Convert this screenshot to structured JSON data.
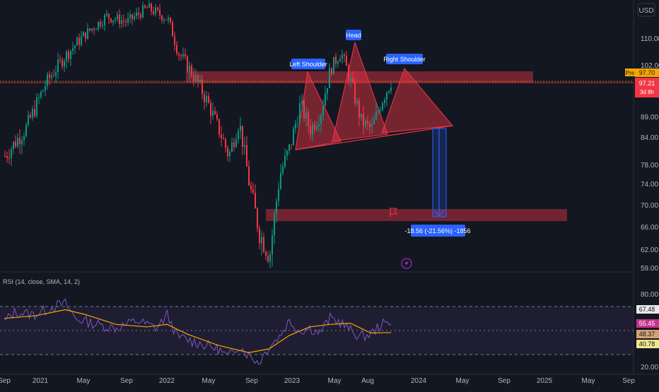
{
  "currency": "USD",
  "price_scale": {
    "ticks": [
      "110.00",
      "102.00",
      "97.70",
      "97.21",
      "89.00",
      "84.00",
      "78.00",
      "74.00",
      "70.00",
      "66.00",
      "62.00",
      "59.00"
    ],
    "pre_label": "Pre",
    "pre_value": "97.70",
    "last_value": "97.21",
    "countdown": "3d 8h",
    "pre_color": "#f7a600",
    "last_color": "#f23645"
  },
  "time_axis": [
    "Sep",
    "2021",
    "May",
    "Sep",
    "2022",
    "May",
    "Sep",
    "2023",
    "May",
    "Aug",
    "2024",
    "May",
    "Sep",
    "2025",
    "May",
    "Sep"
  ],
  "pattern": {
    "left_shoulder": "Left Shoulder",
    "head": "Head",
    "right_shoulder": "Right Shoulder",
    "projection": "-18.56 (-21.56%) -1856"
  },
  "rsi": {
    "title": "RSI (14, close, SMA, 14, 2)",
    "levels": [
      "80.00",
      "20.00"
    ],
    "badges": [
      "67.48",
      "55.45",
      "48.37",
      "40.78"
    ],
    "badge_colors": [
      "#e8e8e8",
      "#c9318f",
      "#d4a373",
      "#f0e68c"
    ]
  },
  "chart_data": [
    {
      "type": "candlestick",
      "title": "",
      "currency": "USD",
      "x_ticks": [
        "Sep",
        "2021",
        "May",
        "Sep",
        "2022",
        "May",
        "Sep",
        "2023",
        "May",
        "Aug",
        "2024",
        "May",
        "Sep",
        "2025",
        "May",
        "Sep"
      ],
      "y_ticks": [
        110,
        102,
        89,
        84,
        78,
        74,
        70,
        66,
        62,
        59
      ],
      "ylim": [
        58,
        125
      ],
      "close_path": [
        [
          "2020-09",
          80
        ],
        [
          "2020-11",
          86
        ],
        [
          "2021-01",
          97
        ],
        [
          "2021-03",
          105
        ],
        [
          "2021-05",
          112
        ],
        [
          "2021-07",
          118
        ],
        [
          "2021-09",
          116
        ],
        [
          "2021-11",
          121
        ],
        [
          "2022-01",
          117
        ],
        [
          "2022-02",
          106
        ],
        [
          "2022-04",
          97
        ],
        [
          "2022-05",
          92
        ],
        [
          "2022-06",
          86
        ],
        [
          "2022-07",
          80
        ],
        [
          "2022-08",
          88
        ],
        [
          "2022-09",
          74
        ],
        [
          "2022-10",
          65
        ],
        [
          "2022-11",
          61
        ],
        [
          "2022-12",
          76
        ],
        [
          "2023-01",
          82
        ],
        [
          "2023-02",
          92
        ],
        [
          "2023-03",
          86
        ],
        [
          "2023-04",
          90
        ],
        [
          "2023-05",
          101
        ],
        [
          "2023-06",
          106
        ],
        [
          "2023-07",
          97
        ],
        [
          "2023-08",
          88
        ],
        [
          "2023-09",
          86
        ],
        [
          "2023-10",
          93
        ],
        [
          "2023-11",
          98
        ]
      ],
      "last_price": 97.21
    },
    {
      "type": "line",
      "title": "RSI (14, close, SMA, 14, 2)",
      "ylim": [
        20,
        85
      ],
      "levels": [
        80,
        20
      ],
      "series": [
        {
          "points": [
            [
              "2020-09",
              57
            ],
            [
              "2020-10",
              65
            ],
            [
              "2020-12",
              63
            ],
            [
              "2021-02",
              70
            ],
            [
              "2021-03",
              72
            ],
            [
              "2021-04",
              60
            ],
            [
              "2021-06",
              55
            ],
            [
              "2021-08",
              52
            ],
            [
              "2021-10",
              58
            ],
            [
              "2021-12",
              52
            ],
            [
              "2022-01",
              63
            ],
            [
              "2022-02",
              45
            ],
            [
              "2022-04",
              40
            ],
            [
              "2022-06",
              35
            ],
            [
              "2022-07",
              28
            ],
            [
              "2022-08",
              38
            ],
            [
              "2022-09",
              30
            ],
            [
              "2022-10",
              24
            ],
            [
              "2022-11",
              37
            ],
            [
              "2022-12",
              45
            ],
            [
              "2023-01",
              58
            ],
            [
              "2023-02",
              50
            ],
            [
              "2023-03",
              52
            ],
            [
              "2023-04",
              48
            ],
            [
              "2023-05",
              60
            ],
            [
              "2023-06",
              57
            ],
            [
              "2023-07",
              50
            ],
            [
              "2023-08",
              45
            ],
            [
              "2023-09",
              47
            ],
            [
              "2023-10",
              55
            ],
            [
              "2023-11",
              55.45
            ]
          ]
        },
        {
          "points": [
            [
              "2020-09",
              60
            ],
            [
              "2020-12",
              62
            ],
            [
              "2021-03",
              67
            ],
            [
              "2021-05",
              63
            ],
            [
              "2021-08",
              55
            ],
            [
              "2021-11",
              53
            ],
            [
              "2022-01",
              55
            ],
            [
              "2022-03",
              47
            ],
            [
              "2022-06",
              38
            ],
            [
              "2022-09",
              32
            ],
            [
              "2022-11",
              35
            ],
            [
              "2023-01",
              46
            ],
            [
              "2023-03",
              53
            ],
            [
              "2023-05",
              55
            ],
            [
              "2023-07",
              56
            ],
            [
              "2023-09",
              48
            ],
            [
              "2023-11",
              48.37
            ]
          ]
        }
      ]
    }
  ]
}
